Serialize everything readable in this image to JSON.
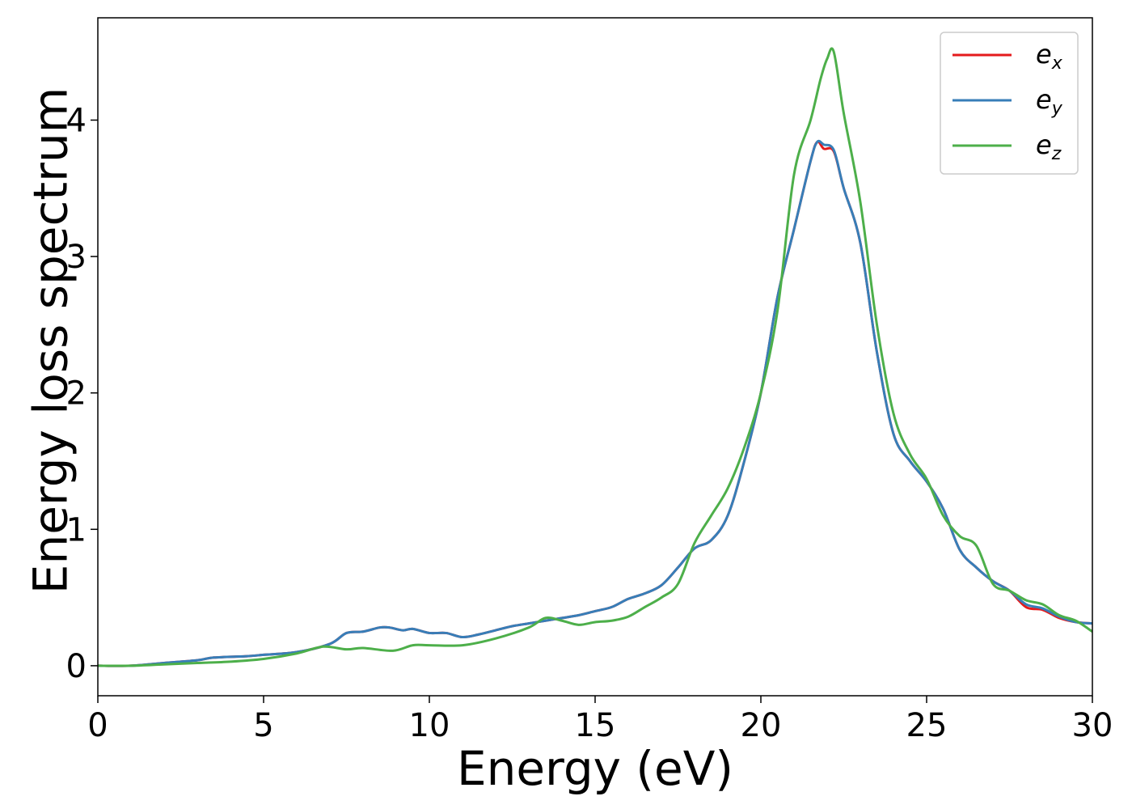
{
  "chart_data": {
    "type": "line",
    "title": "",
    "xlabel": "Energy (eV)",
    "ylabel": "Energy loss spectrum",
    "xlim": [
      0,
      30
    ],
    "ylim": [
      -0.22,
      4.75
    ],
    "xticks": [
      0,
      5,
      10,
      15,
      20,
      25,
      30
    ],
    "yticks": [
      0,
      1,
      2,
      3,
      4
    ],
    "grid": false,
    "legend_position": "top-right",
    "series": [
      {
        "name": "e",
        "subscript": "x",
        "color": "#e41a1c",
        "x": [
          0,
          1,
          2,
          3,
          3.5,
          4.5,
          5,
          6,
          7,
          7.5,
          8,
          8.5,
          8.8,
          9.2,
          9.5,
          10,
          10.5,
          11,
          11.5,
          12,
          12.5,
          13,
          13.5,
          14,
          14.5,
          15,
          15.5,
          16,
          16.5,
          17,
          17.5,
          18,
          18.5,
          19,
          19.5,
          20,
          20.5,
          21,
          21.5,
          21.7,
          21.9,
          22.2,
          22.5,
          23,
          23.5,
          24,
          24.5,
          25,
          25.5,
          26,
          26.5,
          27,
          27.5,
          28,
          28.5,
          29,
          29.5,
          30
        ],
        "y": [
          0.0,
          0.0,
          0.02,
          0.04,
          0.06,
          0.07,
          0.08,
          0.1,
          0.16,
          0.24,
          0.25,
          0.28,
          0.28,
          0.26,
          0.27,
          0.24,
          0.24,
          0.21,
          0.23,
          0.26,
          0.29,
          0.31,
          0.33,
          0.35,
          0.37,
          0.4,
          0.43,
          0.49,
          0.53,
          0.59,
          0.72,
          0.86,
          0.92,
          1.1,
          1.5,
          2.0,
          2.7,
          3.2,
          3.7,
          3.84,
          3.79,
          3.77,
          3.5,
          3.1,
          2.3,
          1.7,
          1.5,
          1.35,
          1.15,
          0.85,
          0.72,
          0.62,
          0.55,
          0.43,
          0.41,
          0.35,
          0.32,
          0.31
        ]
      },
      {
        "name": "e",
        "subscript": "y",
        "color": "#377eb8",
        "x": [
          0,
          1,
          2,
          3,
          3.5,
          4.5,
          5,
          6,
          7,
          7.5,
          8,
          8.5,
          8.8,
          9.2,
          9.5,
          10,
          10.5,
          11,
          11.5,
          12,
          12.5,
          13,
          13.5,
          14,
          14.5,
          15,
          15.5,
          16,
          16.5,
          17,
          17.5,
          18,
          18.5,
          19,
          19.5,
          20,
          20.5,
          21,
          21.5,
          21.7,
          21.9,
          22.2,
          22.5,
          23,
          23.5,
          24,
          24.5,
          25,
          25.5,
          26,
          26.5,
          27,
          27.5,
          28,
          28.5,
          29,
          29.5,
          30
        ],
        "y": [
          0.0,
          0.0,
          0.02,
          0.04,
          0.06,
          0.07,
          0.08,
          0.1,
          0.16,
          0.24,
          0.25,
          0.28,
          0.28,
          0.26,
          0.27,
          0.24,
          0.24,
          0.21,
          0.23,
          0.26,
          0.29,
          0.31,
          0.33,
          0.35,
          0.37,
          0.4,
          0.43,
          0.49,
          0.53,
          0.59,
          0.72,
          0.86,
          0.92,
          1.1,
          1.5,
          2.0,
          2.7,
          3.2,
          3.7,
          3.84,
          3.82,
          3.78,
          3.5,
          3.1,
          2.3,
          1.7,
          1.5,
          1.35,
          1.15,
          0.85,
          0.72,
          0.62,
          0.55,
          0.45,
          0.42,
          0.36,
          0.32,
          0.31
        ]
      },
      {
        "name": "e",
        "subscript": "z",
        "color": "#4daf4a",
        "x": [
          0,
          1,
          2,
          3,
          4,
          5,
          6,
          6.8,
          7.5,
          8,
          8.9,
          9.5,
          10,
          11,
          12,
          13,
          13.5,
          14,
          14.5,
          15,
          15.5,
          16,
          16.5,
          17,
          17.5,
          18,
          18.5,
          19,
          19.5,
          20,
          20.5,
          21,
          21.5,
          21.8,
          22,
          22.2,
          22.5,
          23,
          23.5,
          24,
          24.5,
          25,
          25.5,
          26,
          26.5,
          27,
          27.5,
          28,
          28.5,
          29,
          29.5,
          30
        ],
        "y": [
          0.0,
          0.0,
          0.01,
          0.02,
          0.03,
          0.05,
          0.09,
          0.14,
          0.12,
          0.13,
          0.11,
          0.15,
          0.15,
          0.15,
          0.2,
          0.28,
          0.35,
          0.33,
          0.3,
          0.32,
          0.33,
          0.36,
          0.43,
          0.5,
          0.6,
          0.9,
          1.1,
          1.3,
          1.6,
          2.0,
          2.6,
          3.6,
          4.0,
          4.3,
          4.45,
          4.5,
          4.05,
          3.4,
          2.5,
          1.85,
          1.55,
          1.37,
          1.1,
          0.95,
          0.88,
          0.6,
          0.55,
          0.48,
          0.45,
          0.37,
          0.33,
          0.25
        ]
      }
    ]
  }
}
